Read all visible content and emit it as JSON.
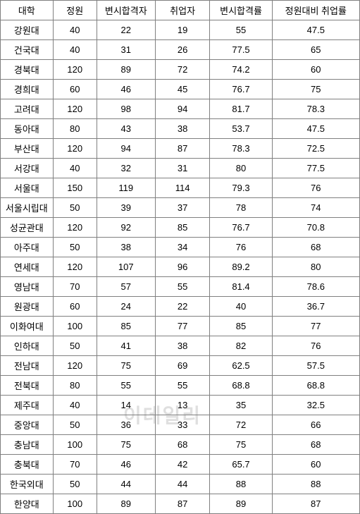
{
  "table": {
    "headers": {
      "univ": "대학",
      "quota": "정원",
      "pass": "변시합격자",
      "emp": "취업자",
      "passrate": "변시합격률",
      "emprate": "정원대비 취업률"
    },
    "rows": [
      {
        "univ": "강원대",
        "quota": "40",
        "pass": "22",
        "emp": "19",
        "passrate": "55",
        "emprate": "47.5"
      },
      {
        "univ": "건국대",
        "quota": "40",
        "pass": "31",
        "emp": "26",
        "passrate": "77.5",
        "emprate": "65"
      },
      {
        "univ": "경북대",
        "quota": "120",
        "pass": "89",
        "emp": "72",
        "passrate": "74.2",
        "emprate": "60"
      },
      {
        "univ": "경희대",
        "quota": "60",
        "pass": "46",
        "emp": "45",
        "passrate": "76.7",
        "emprate": "75"
      },
      {
        "univ": "고려대",
        "quota": "120",
        "pass": "98",
        "emp": "94",
        "passrate": "81.7",
        "emprate": "78.3"
      },
      {
        "univ": "동아대",
        "quota": "80",
        "pass": "43",
        "emp": "38",
        "passrate": "53.7",
        "emprate": "47.5"
      },
      {
        "univ": "부산대",
        "quota": "120",
        "pass": "94",
        "emp": "87",
        "passrate": "78.3",
        "emprate": "72.5"
      },
      {
        "univ": "서강대",
        "quota": "40",
        "pass": "32",
        "emp": "31",
        "passrate": "80",
        "emprate": "77.5"
      },
      {
        "univ": "서울대",
        "quota": "150",
        "pass": "119",
        "emp": "114",
        "passrate": "79.3",
        "emprate": "76"
      },
      {
        "univ": "서울시립대",
        "quota": "50",
        "pass": "39",
        "emp": "37",
        "passrate": "78",
        "emprate": "74"
      },
      {
        "univ": "성균관대",
        "quota": "120",
        "pass": "92",
        "emp": "85",
        "passrate": "76.7",
        "emprate": "70.8"
      },
      {
        "univ": "아주대",
        "quota": "50",
        "pass": "38",
        "emp": "34",
        "passrate": "76",
        "emprate": "68"
      },
      {
        "univ": "연세대",
        "quota": "120",
        "pass": "107",
        "emp": "96",
        "passrate": "89.2",
        "emprate": "80"
      },
      {
        "univ": "영남대",
        "quota": "70",
        "pass": "57",
        "emp": "55",
        "passrate": "81.4",
        "emprate": "78.6"
      },
      {
        "univ": "원광대",
        "quota": "60",
        "pass": "24",
        "emp": "22",
        "passrate": "40",
        "emprate": "36.7"
      },
      {
        "univ": "이화여대",
        "quota": "100",
        "pass": "85",
        "emp": "77",
        "passrate": "85",
        "emprate": "77"
      },
      {
        "univ": "인하대",
        "quota": "50",
        "pass": "41",
        "emp": "38",
        "passrate": "82",
        "emprate": "76"
      },
      {
        "univ": "전남대",
        "quota": "120",
        "pass": "75",
        "emp": "69",
        "passrate": "62.5",
        "emprate": "57.5"
      },
      {
        "univ": "전북대",
        "quota": "80",
        "pass": "55",
        "emp": "55",
        "passrate": "68.8",
        "emprate": "68.8"
      },
      {
        "univ": "제주대",
        "quota": "40",
        "pass": "14",
        "emp": "13",
        "passrate": "35",
        "emprate": "32.5"
      },
      {
        "univ": "중앙대",
        "quota": "50",
        "pass": "36",
        "emp": "33",
        "passrate": "72",
        "emprate": "66"
      },
      {
        "univ": "충남대",
        "quota": "100",
        "pass": "75",
        "emp": "68",
        "passrate": "75",
        "emprate": "68"
      },
      {
        "univ": "충북대",
        "quota": "70",
        "pass": "46",
        "emp": "42",
        "passrate": "65.7",
        "emprate": "60"
      },
      {
        "univ": "한국외대",
        "quota": "50",
        "pass": "44",
        "emp": "44",
        "passrate": "88",
        "emprate": "88"
      },
      {
        "univ": "한양대",
        "quota": "100",
        "pass": "89",
        "emp": "87",
        "passrate": "89",
        "emprate": "87"
      }
    ]
  },
  "watermark": "이데일리"
}
